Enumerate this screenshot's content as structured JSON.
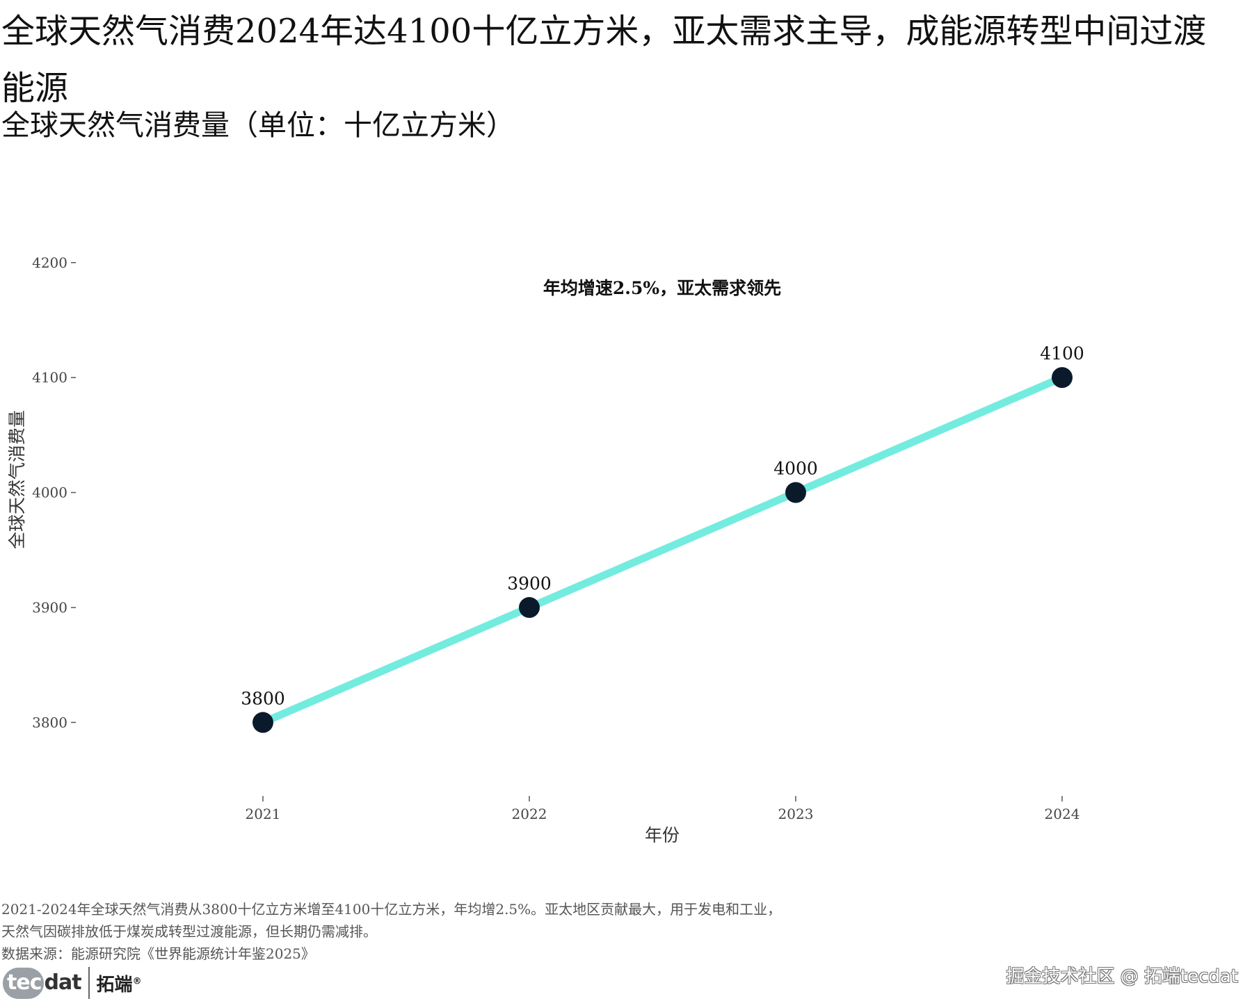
{
  "title": "全球天然气消费2024年达4100十亿立方米，亚太需求主导，成能源转型中间过渡能源",
  "subtitle": "全球天然气消费量（单位：十亿立方米）",
  "chart_data": {
    "type": "line",
    "x": [
      "2021",
      "2022",
      "2023",
      "2024"
    ],
    "values": [
      3800,
      3900,
      4000,
      4100
    ],
    "data_labels": [
      "3800",
      "3900",
      "4000",
      "4100"
    ],
    "xlabel": "年份",
    "ylabel": "全球天然气消费量",
    "yticks": [
      3800,
      3900,
      4000,
      4100,
      4200
    ],
    "ylim": [
      3750,
      4270
    ],
    "annotation": "年均增速2.5%，亚太需求领先",
    "grid": false,
    "legend": "none",
    "line_color": "#73ECDF",
    "point_color": "#0B1A2B"
  },
  "caption": {
    "line1": "2021-2024年全球天然气消费从3800十亿立方米增至4100十亿立方米，年均增2.5%。亚太地区贡献最大，用于发电和工业，",
    "line2": "天然气因碳排放低于煤炭成转型过渡能源，但长期仍需减排。",
    "source": "数据来源：能源研究院《世界能源统计年鉴2025》"
  },
  "logo": {
    "tec": "tec",
    "dat": "dat",
    "cn": "拓端",
    "mark": "®"
  },
  "watermark": "掘金技术社区 @ 拓端tecdat"
}
